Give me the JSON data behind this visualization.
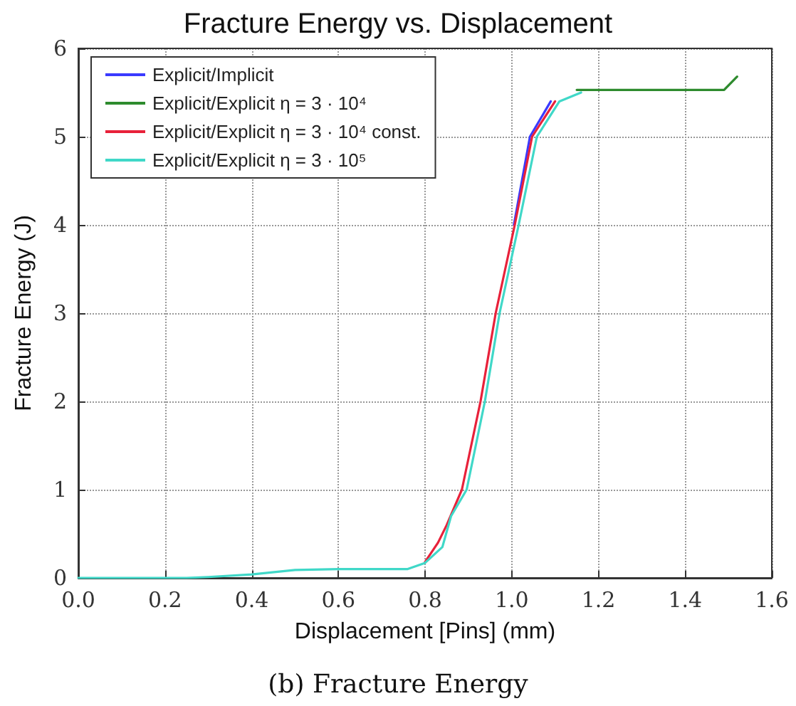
{
  "chart_data": {
    "type": "line",
    "title": "Fracture Energy vs. Displacement",
    "xlabel": "Displacement [Pins] (mm)",
    "ylabel": "Fracture Energy (J)",
    "annotations": [
      "(b) Fracture Energy"
    ],
    "xlim": [
      0,
      1.6
    ],
    "xticks": [
      {
        "value": 0,
        "label": "0.0"
      },
      0.2,
      0.4,
      0.6,
      0.8,
      {
        "value": 1,
        "label": "1.0"
      },
      1.2,
      1.4,
      1.6
    ],
    "ylim": [
      0,
      6
    ],
    "yticks": [
      0,
      1,
      2,
      3,
      4,
      5,
      6
    ],
    "grid": true,
    "legend": "top left",
    "marker": "none",
    "line_style": "solid",
    "series": [
      {
        "name": "Explicit/Implicit",
        "color": "#3a3aff",
        "x": [
          1.005,
          1.042,
          1.09
        ],
        "values": [
          4,
          5,
          5.4
        ]
      },
      {
        "name": "Explicit/Explicit η = 3 · 10⁴",
        "color": "#2e8b2e",
        "x": [
          1.15,
          1.49,
          1.52
        ],
        "values": [
          5.53,
          5.53,
          5.68
        ]
      },
      {
        "name": "Explicit/Explicit η = 3 · 10⁴ const.",
        "color": "#e8213a",
        "x": [
          0.8,
          0.83,
          0.85,
          0.885,
          0.928,
          0.963,
          1.007,
          1.047,
          1.1
        ],
        "values": [
          0.18,
          0.4,
          0.6,
          1,
          2,
          3,
          4,
          5,
          5.4
        ]
      },
      {
        "name": "Explicit/Explicit η = 3 · 10⁵",
        "color": "#40d8c8",
        "x": [
          0,
          0.25,
          0.3,
          0.4,
          0.5,
          0.6,
          0.76,
          0.8,
          0.84,
          0.86,
          0.896,
          0.938,
          0.972,
          1.016,
          1.058,
          1.11,
          1.16
        ],
        "values": [
          0,
          0,
          0.01,
          0.04,
          0.09,
          0.1,
          0.1,
          0.17,
          0.35,
          0.7,
          1,
          2,
          3,
          4,
          5,
          5.4,
          5.5
        ]
      }
    ]
  }
}
